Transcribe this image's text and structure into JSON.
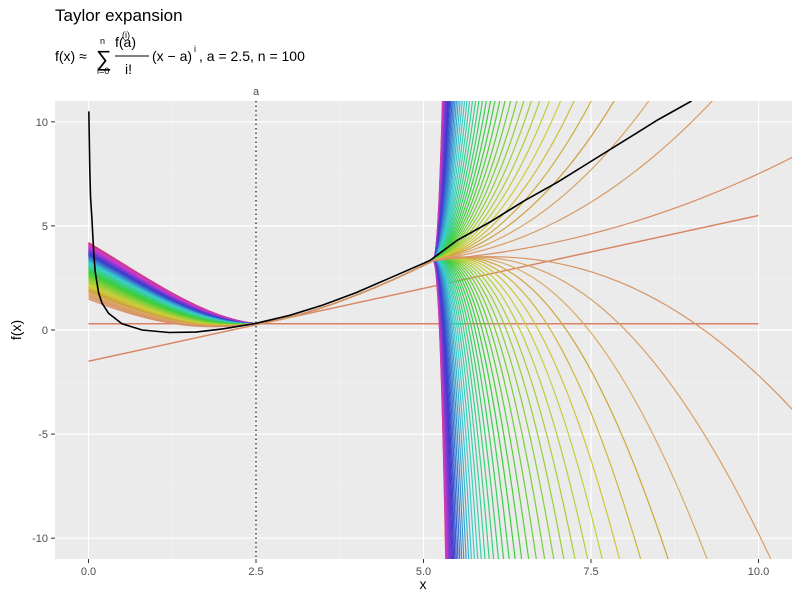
{
  "chart_data": {
    "type": "line",
    "title": "Taylor expansion",
    "subtitle": {
      "lhs": "f(x) ≈",
      "sum_upper": "n",
      "sum_lower": "i=0",
      "sigma": "∑",
      "numerator": "f(a)",
      "numerator_sup": "(i)",
      "denominator": "i!",
      "term": "(x − a)",
      "term_sup": "i",
      "params": ", a = 2.5, n = 100"
    },
    "xlabel": "x",
    "ylabel": "f(x)",
    "xlim": [
      -0.5,
      10.5
    ],
    "ylim": [
      -11,
      11
    ],
    "x_ticks": [
      0.0,
      2.5,
      5.0,
      7.5,
      10.0
    ],
    "x_tick_labels": [
      "0.0",
      "2.5",
      "5.0",
      "7.5",
      "10.0"
    ],
    "y_ticks": [
      -10,
      -5,
      0,
      5,
      10
    ],
    "y_tick_labels": [
      "-10",
      "-5",
      "0",
      "5",
      "10"
    ],
    "grid": true,
    "expansion_point": 2.5,
    "expansion_point_label": "a",
    "expansion_point_value": 0.32,
    "order_count": 100,
    "singularity_x": 5.14,
    "function": {
      "color": "#000000",
      "points": [
        [
          0.005,
          10.5
        ],
        [
          0.01,
          9.5
        ],
        [
          0.02,
          7.6
        ],
        [
          0.03,
          6.4
        ],
        [
          0.05,
          5.4
        ],
        [
          0.08,
          3.6
        ],
        [
          0.1,
          2.8
        ],
        [
          0.15,
          1.8
        ],
        [
          0.2,
          1.3
        ],
        [
          0.3,
          0.8
        ],
        [
          0.5,
          0.3
        ],
        [
          0.8,
          0.0
        ],
        [
          1.2,
          -0.12
        ],
        [
          1.6,
          -0.1
        ],
        [
          2.0,
          0.05
        ],
        [
          2.5,
          0.32
        ],
        [
          3.0,
          0.7
        ],
        [
          3.5,
          1.2
        ],
        [
          4.0,
          1.8
        ],
        [
          4.5,
          2.5
        ],
        [
          5.0,
          3.2
        ],
        [
          5.1,
          3.35
        ],
        [
          5.5,
          4.3
        ],
        [
          6.0,
          5.2
        ],
        [
          6.5,
          6.2
        ],
        [
          7.0,
          7.1
        ],
        [
          7.5,
          8.1
        ],
        [
          8.0,
          9.1
        ],
        [
          8.5,
          10.1
        ],
        [
          9.0,
          11.0
        ]
      ]
    },
    "series_first_order": [
      [
        0,
        -1.5
      ],
      [
        10,
        5.5
      ]
    ],
    "series_zero_order": [
      [
        0,
        0.3
      ],
      [
        10,
        0.3
      ]
    ]
  }
}
